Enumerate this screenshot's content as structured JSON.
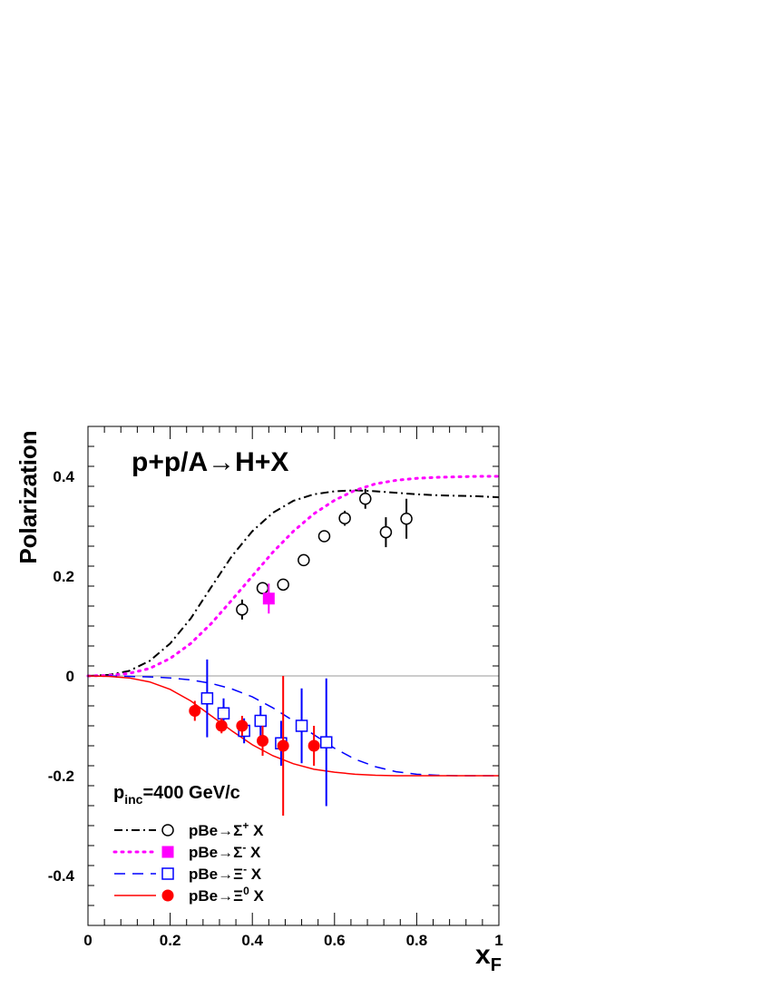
{
  "chart_data": {
    "type": "scatter",
    "title": "p+p/A→H+X",
    "annotation": {
      "main": "p",
      "sub": "inc",
      "rest": "=400 GeV/c"
    },
    "xlabel": {
      "main": "x",
      "sub": "F"
    },
    "ylabel": "Polarization",
    "xlim": [
      0,
      1
    ],
    "ylim": [
      -0.5,
      0.5
    ],
    "x_ticks": [
      0,
      0.2,
      0.4,
      0.6,
      0.8,
      1
    ],
    "x_tick_labels": [
      "0",
      "0.2",
      "0.4",
      "0.6",
      "0.8",
      "1"
    ],
    "y_ticks": [
      -0.4,
      -0.2,
      0,
      0.2,
      0.4
    ],
    "y_tick_labels": [
      "-0.4",
      "-0.2",
      "0",
      "0.2",
      "0.4"
    ],
    "zero_line": true,
    "legend_position": "bottom-left",
    "series": [
      {
        "label": {
          "pre": "pBe→Σ",
          "sup": "+",
          "post": " X"
        },
        "color": "#000000",
        "marker": "open-circle",
        "line_style": "dash-dot",
        "points": [
          {
            "x": 0.375,
            "y": 0.133,
            "err": 0.02
          },
          {
            "x": 0.425,
            "y": 0.176,
            "err": 0.012
          },
          {
            "x": 0.475,
            "y": 0.183,
            "err": 0.01
          },
          {
            "x": 0.525,
            "y": 0.232,
            "err": 0.01
          },
          {
            "x": 0.575,
            "y": 0.28,
            "err": 0.01
          },
          {
            "x": 0.625,
            "y": 0.316,
            "err": 0.015
          },
          {
            "x": 0.675,
            "y": 0.355,
            "err": 0.02
          },
          {
            "x": 0.725,
            "y": 0.288,
            "err": 0.03
          },
          {
            "x": 0.775,
            "y": 0.315,
            "err": 0.04
          }
        ],
        "curve": [
          [
            0,
            0
          ],
          [
            0.05,
            0.002
          ],
          [
            0.1,
            0.01
          ],
          [
            0.15,
            0.03
          ],
          [
            0.2,
            0.065
          ],
          [
            0.25,
            0.115
          ],
          [
            0.3,
            0.178
          ],
          [
            0.35,
            0.24
          ],
          [
            0.4,
            0.29
          ],
          [
            0.45,
            0.327
          ],
          [
            0.5,
            0.351
          ],
          [
            0.55,
            0.364
          ],
          [
            0.6,
            0.37
          ],
          [
            0.65,
            0.372
          ],
          [
            0.7,
            0.37
          ],
          [
            0.75,
            0.367
          ],
          [
            0.8,
            0.364
          ],
          [
            0.85,
            0.362
          ],
          [
            0.9,
            0.361
          ],
          [
            0.95,
            0.36
          ],
          [
            1.0,
            0.358
          ]
        ]
      },
      {
        "label": {
          "pre": "pBe→Σ",
          "sup": "-",
          "post": " X"
        },
        "color": "#ff00ff",
        "marker": "filled-square",
        "line_style": "dotted",
        "points": [
          {
            "x": 0.44,
            "y": 0.155,
            "err": 0.03
          }
        ],
        "curve": [
          [
            0,
            0
          ],
          [
            0.05,
            0.001
          ],
          [
            0.1,
            0.005
          ],
          [
            0.15,
            0.015
          ],
          [
            0.2,
            0.035
          ],
          [
            0.25,
            0.065
          ],
          [
            0.3,
            0.105
          ],
          [
            0.35,
            0.152
          ],
          [
            0.4,
            0.2
          ],
          [
            0.45,
            0.248
          ],
          [
            0.5,
            0.29
          ],
          [
            0.55,
            0.325
          ],
          [
            0.6,
            0.352
          ],
          [
            0.65,
            0.372
          ],
          [
            0.7,
            0.385
          ],
          [
            0.75,
            0.392
          ],
          [
            0.8,
            0.396
          ],
          [
            0.85,
            0.398
          ],
          [
            0.9,
            0.399
          ],
          [
            0.95,
            0.4
          ],
          [
            1.0,
            0.4
          ]
        ]
      },
      {
        "label": {
          "pre": "pBe→Ξ",
          "sup": "-",
          "post": " X"
        },
        "color": "#0000ff",
        "marker": "open-square",
        "line_style": "dashed",
        "points": [
          {
            "x": 0.29,
            "y": -0.045,
            "err": 0.078
          },
          {
            "x": 0.33,
            "y": -0.075,
            "err": 0.03
          },
          {
            "x": 0.38,
            "y": -0.11,
            "err": 0.025
          },
          {
            "x": 0.42,
            "y": -0.09,
            "err": 0.03
          },
          {
            "x": 0.47,
            "y": -0.135,
            "err": 0.045
          },
          {
            "x": 0.52,
            "y": -0.1,
            "err": 0.075
          },
          {
            "x": 0.58,
            "y": -0.133,
            "err": 0.128
          }
        ],
        "curve": [
          [
            0,
            0
          ],
          [
            0.05,
            0
          ],
          [
            0.1,
            -0.001
          ],
          [
            0.15,
            -0.002
          ],
          [
            0.2,
            -0.004
          ],
          [
            0.25,
            -0.008
          ],
          [
            0.3,
            -0.015
          ],
          [
            0.35,
            -0.026
          ],
          [
            0.4,
            -0.042
          ],
          [
            0.45,
            -0.064
          ],
          [
            0.5,
            -0.09
          ],
          [
            0.55,
            -0.118
          ],
          [
            0.6,
            -0.145
          ],
          [
            0.65,
            -0.167
          ],
          [
            0.7,
            -0.182
          ],
          [
            0.75,
            -0.192
          ],
          [
            0.8,
            -0.197
          ],
          [
            0.85,
            -0.199
          ],
          [
            0.9,
            -0.2
          ],
          [
            0.95,
            -0.2
          ],
          [
            1.0,
            -0.2
          ]
        ]
      },
      {
        "label": {
          "pre": "pBe→Ξ",
          "sup": "0",
          "post": " X"
        },
        "color": "#ff0000",
        "marker": "filled-circle",
        "line_style": "solid",
        "points": [
          {
            "x": 0.26,
            "y": -0.07,
            "err": 0.02
          },
          {
            "x": 0.325,
            "y": -0.1,
            "err": 0.015
          },
          {
            "x": 0.375,
            "y": -0.1,
            "err": 0.02
          },
          {
            "x": 0.425,
            "y": -0.13,
            "err": 0.03
          },
          {
            "x": 0.475,
            "y": -0.14,
            "err": 0.14
          },
          {
            "x": 0.55,
            "y": -0.14,
            "err": 0.04
          }
        ],
        "curve": [
          [
            0,
            0
          ],
          [
            0.05,
            -0.001
          ],
          [
            0.1,
            -0.004
          ],
          [
            0.15,
            -0.012
          ],
          [
            0.2,
            -0.027
          ],
          [
            0.25,
            -0.05
          ],
          [
            0.3,
            -0.08
          ],
          [
            0.35,
            -0.11
          ],
          [
            0.4,
            -0.138
          ],
          [
            0.45,
            -0.16
          ],
          [
            0.5,
            -0.176
          ],
          [
            0.55,
            -0.187
          ],
          [
            0.6,
            -0.193
          ],
          [
            0.65,
            -0.197
          ],
          [
            0.7,
            -0.199
          ],
          [
            0.75,
            -0.2
          ],
          [
            0.8,
            -0.2
          ],
          [
            0.85,
            -0.2
          ],
          [
            0.9,
            -0.2
          ],
          [
            0.95,
            -0.2
          ],
          [
            1.0,
            -0.2
          ]
        ]
      }
    ]
  }
}
